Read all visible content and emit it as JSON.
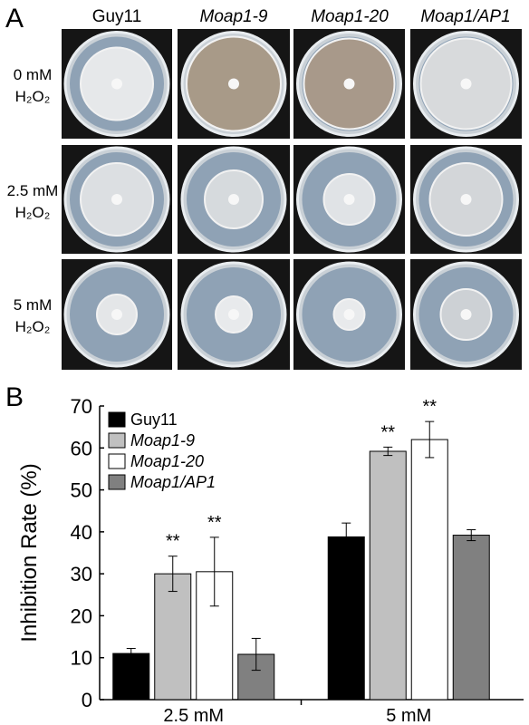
{
  "panel_a": {
    "label": "A",
    "columns": [
      "Guy11",
      "Moap1-9",
      "Moap1-20",
      "Moap1/AP1"
    ],
    "rows": [
      [
        "0 mM",
        "H₂O₂"
      ],
      [
        "2.5 mM",
        "H₂O₂"
      ],
      [
        "5 mM",
        "H₂O₂"
      ]
    ]
  },
  "chart_data": {
    "panel_label": "B",
    "type": "bar",
    "y_label": "Inhibition Rate (%)",
    "categories": [
      "2.5 mM",
      "5 mM"
    ],
    "series": [
      {
        "name": "Guy11",
        "color": "#000000",
        "values": [
          11,
          38.8
        ],
        "errors": [
          1.2,
          3.3
        ]
      },
      {
        "name": "Moap1-9",
        "color": "#c0c0c0",
        "values": [
          30,
          59.2
        ],
        "errors": [
          4.2,
          1.0
        ],
        "annotations": [
          "**",
          "**"
        ]
      },
      {
        "name": "Moap1-20",
        "color": "#ffffff",
        "values": [
          30.5,
          62
        ],
        "errors": [
          8.2,
          4.3
        ],
        "annotations": [
          "**",
          "**"
        ]
      },
      {
        "name": "Moap1/AP1",
        "color": "#808080",
        "values": [
          10.8,
          39.2
        ],
        "errors": [
          3.8,
          1.3
        ]
      }
    ],
    "ylim": [
      0,
      70
    ],
    "yticks": [
      0,
      10,
      20,
      30,
      40,
      50,
      60,
      70
    ],
    "legend": "upper-left"
  }
}
